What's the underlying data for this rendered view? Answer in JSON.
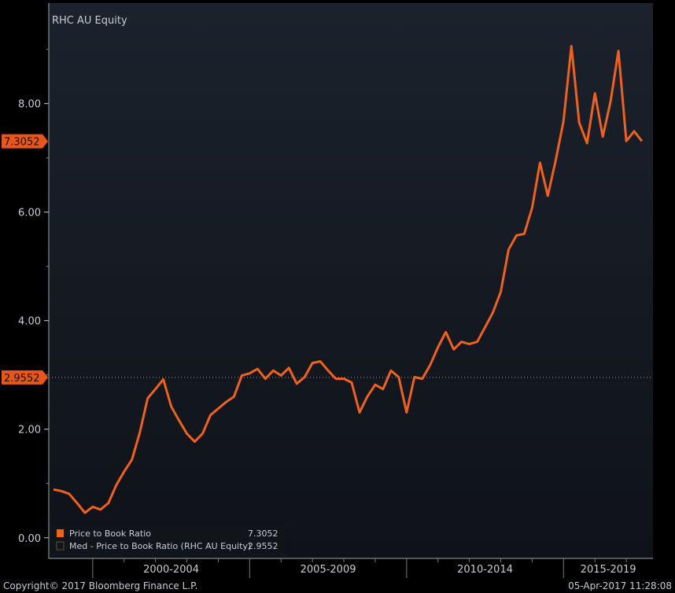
{
  "chart_data": {
    "type": "line",
    "title": "RHC AU Equity",
    "xlabel": "",
    "ylabel": "",
    "ylim": [
      -0.38,
      9.85
    ],
    "xlim": [
      1998.6,
      2017.85
    ],
    "yticks": [
      0,
      2,
      4,
      6,
      8
    ],
    "ytick_labels": [
      "0.00",
      "2.00",
      "4.00",
      "6.00",
      "8.00"
    ],
    "xgroups": [
      {
        "label": "2000-2004",
        "start": 2000,
        "end": 2005
      },
      {
        "label": "2005-2009",
        "start": 2005,
        "end": 2010
      },
      {
        "label": "2010-2014",
        "start": 2010,
        "end": 2015
      },
      {
        "label": "2015-2019",
        "start": 2015,
        "end": 2020
      }
    ],
    "x_start": 1998.75,
    "x_step": 0.25,
    "series": [
      {
        "name": "Price to Book Ratio",
        "last": "7.3052",
        "color": "#f0601e",
        "values": [
          0.89,
          0.86,
          0.81,
          0.64,
          0.46,
          0.57,
          0.52,
          0.64,
          0.97,
          1.22,
          1.44,
          1.94,
          2.57,
          2.74,
          2.92,
          2.42,
          2.16,
          1.92,
          1.77,
          1.92,
          2.26,
          2.38,
          2.5,
          2.6,
          2.99,
          3.03,
          3.11,
          2.93,
          3.08,
          2.99,
          3.13,
          2.84,
          2.96,
          3.22,
          3.25,
          3.08,
          2.93,
          2.93,
          2.86,
          2.31,
          2.6,
          2.82,
          2.74,
          3.08,
          2.96,
          2.31,
          2.96,
          2.93,
          3.18,
          3.51,
          3.79,
          3.47,
          3.61,
          3.57,
          3.61,
          3.88,
          4.15,
          4.53,
          5.31,
          5.57,
          5.6,
          6.08,
          6.91,
          6.3,
          6.95,
          7.68,
          9.06,
          7.65,
          7.27,
          8.19,
          7.39,
          8.04,
          8.97,
          7.31,
          7.49,
          7.3052
        ]
      },
      {
        "name": "Med - Price to Book Ratio (RHC AU Equity)",
        "last": "2.9552",
        "value": 2.9552,
        "color": "#e07040"
      }
    ],
    "legend_position": "bottom-left"
  },
  "footer": {
    "copyright": "Copyright© 2017 Bloomberg Finance L.P.",
    "timestamp": "05-Apr-2017 11:28:08"
  },
  "colors": {
    "line": "#f0601e",
    "background": "#161c25",
    "gutter": "#000000"
  }
}
